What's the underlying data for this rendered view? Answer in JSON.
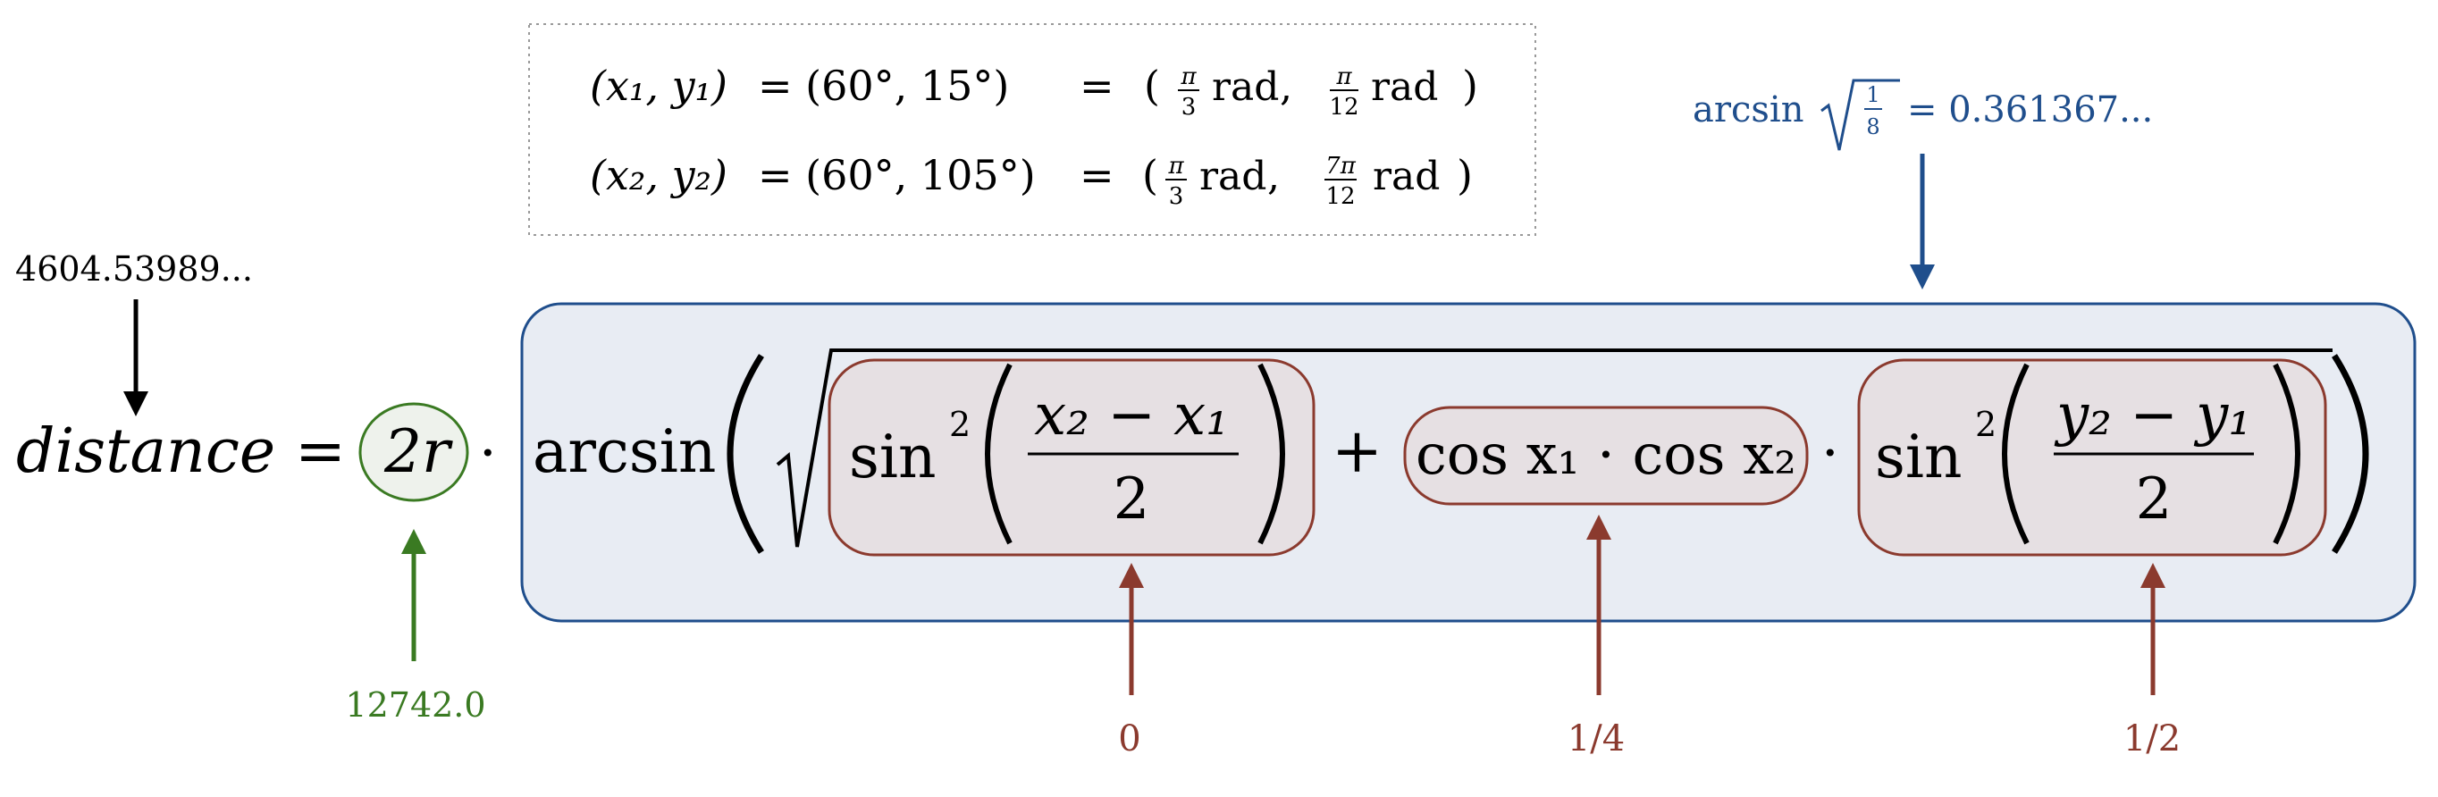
{
  "coords_box": {
    "row1_lhs": "(x₁, y₁)",
    "row1_deg": "= (60°,  15°)",
    "row1_rad_eq": "=",
    "row1_rad_a": "π rad,",
    "row1_rad_a_num": "π",
    "row1_rad_a_den": "3",
    "row1_rad_b_num": "π",
    "row1_rad_b_den": "12",
    "row1_rad_unit": "rad",
    "row2_lhs": "(x₂, y₂)",
    "row2_deg": "= (60°,  105°)",
    "row2_rad_eq": "=",
    "row2_rad_a_num": "π",
    "row2_rad_a_den": "3",
    "row2_rad_b_num": "7π",
    "row2_rad_b_den": "12",
    "row2_rad_unit": "rad",
    "paren_open": "(",
    "paren_close": ")"
  },
  "formula": {
    "lhs": "distance",
    "equals": "=",
    "two_r": "2r",
    "dot": "·",
    "arcsin": "arcsin",
    "plus": "+",
    "sin": "sin",
    "sq": "2",
    "term1_num": "x₂ − x₁",
    "term1_den": "2",
    "term2": "cos x₁ · cos x₂",
    "term3_num": "y₂ − y₁",
    "term3_den": "2"
  },
  "annotations": {
    "distance_value": "4604.53989...",
    "two_r_value": "12742.0",
    "arcsin_label": "arcsin",
    "arcsin_frac_num": "1",
    "arcsin_frac_den": "8",
    "arcsin_value": "= 0.361367...",
    "term1_value": "0",
    "term2_value": "1/4",
    "term3_value": "1/2"
  },
  "colors": {
    "green": "#3a7a22",
    "blue": "#1f4e8c",
    "red": "#8b3a2e",
    "blue_fill": "#e8ecf3",
    "red_fill": "#e6e0e3",
    "green_fill": "#eef2ec"
  }
}
